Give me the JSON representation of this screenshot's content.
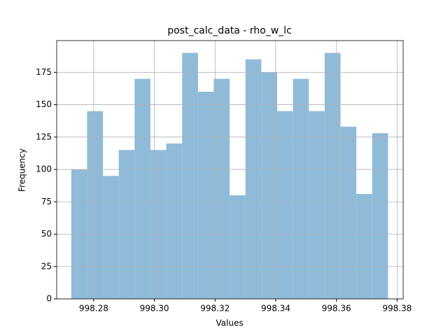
{
  "chart_data": {
    "type": "histogram",
    "title": "post_calc_data - rho_w_lc",
    "xlabel": "Values",
    "ylabel": "Frequency",
    "bins": [
      998.2726,
      998.27782,
      998.28304,
      998.28826,
      998.29348,
      998.2987,
      998.30392,
      998.30914,
      998.31436,
      998.31958,
      998.3248,
      998.33002,
      998.33524,
      998.34046,
      998.34568,
      998.3509,
      998.35612,
      998.36134,
      998.36656,
      998.37178,
      998.377
    ],
    "values": [
      100,
      145,
      95,
      115,
      170,
      115,
      120,
      190,
      160,
      170,
      80,
      185,
      175,
      145,
      170,
      145,
      190,
      133,
      81,
      128
    ],
    "color": "#8fbbd9",
    "xlim": [
      998.2678,
      998.382
    ],
    "xticks": [
      998.28,
      {
        "value": 998.3,
        "label": "998.30"
      },
      998.32,
      998.34,
      998.36,
      998.38
    ],
    "ylim": [
      0,
      199.5
    ],
    "yticks": [
      0,
      25,
      50,
      75,
      100,
      125,
      150,
      175
    ],
    "grid": true
  }
}
